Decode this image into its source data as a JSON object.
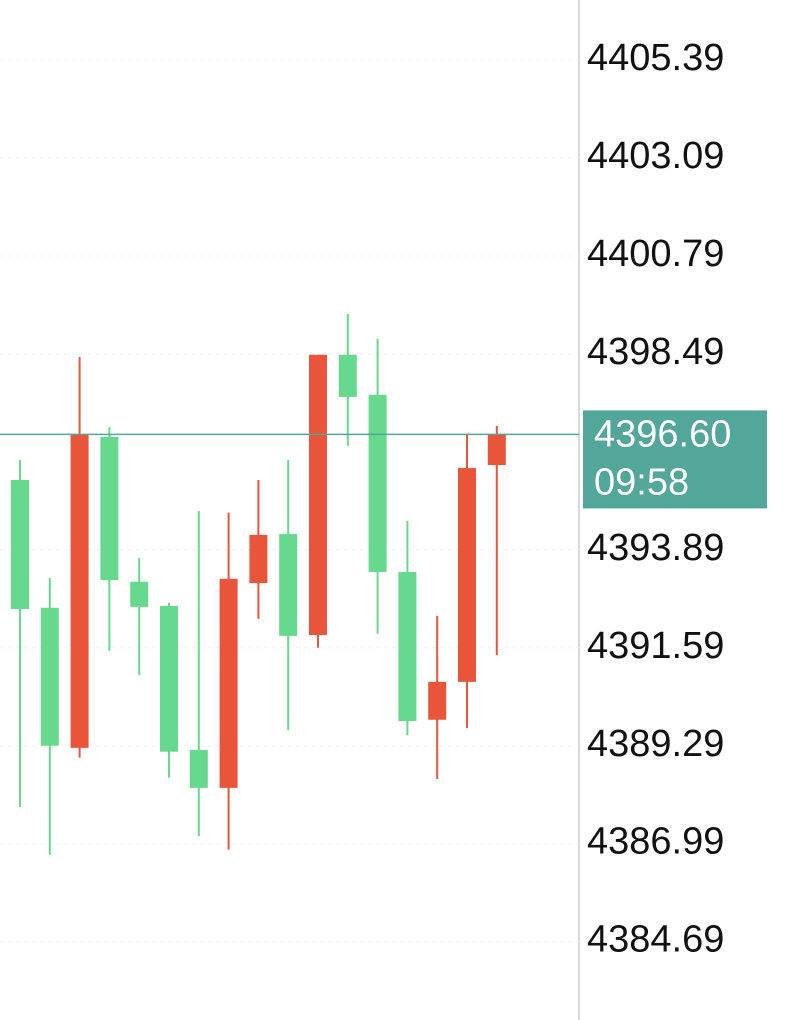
{
  "chart_data": {
    "type": "candlestick",
    "categories": [
      null,
      null,
      null,
      null,
      null,
      null,
      null,
      null,
      null,
      null,
      null,
      null,
      null,
      null,
      null,
      null,
      null
    ],
    "open": [
      4392.5,
      4389.29,
      4396.59,
      4393.18,
      4392.55,
      4389.15,
      4388.3,
      4393.21,
      4394.24,
      4391.87,
      4398.47,
      4397.48,
      4393.37,
      4389.87,
      4390.79,
      4395.81,
      4396.61
    ],
    "high": [
      4396.0,
      4393.23,
      4398.42,
      4396.77,
      4393.7,
      4392.64,
      4394.8,
      4394.76,
      4395.53,
      4396.0,
      4398.47,
      4399.43,
      4398.84,
      4394.57,
      4392.34,
      4396.61,
      4396.8
    ],
    "low": [
      4387.85,
      4386.73,
      4389.01,
      4391.52,
      4390.95,
      4388.54,
      4387.17,
      4386.85,
      4392.27,
      4389.66,
      4391.59,
      4396.33,
      4391.92,
      4389.54,
      4388.51,
      4389.71,
      4391.42
    ],
    "close": [
      4395.53,
      4392.53,
      4389.24,
      4396.54,
      4393.14,
      4392.57,
      4389.19,
      4388.3,
      4393.11,
      4394.26,
      4391.89,
      4398.47,
      4397.53,
      4393.37,
      4389.9,
      4390.79,
      4395.88
    ],
    "up_color": "#66d98e",
    "down_color": "#e8553a",
    "ylim": [
      4382.85,
      4406.8
    ],
    "yticks": [
      4405.39,
      4403.09,
      4400.79,
      4398.49,
      4393.89,
      4391.59,
      4389.29,
      4386.99,
      4384.69
    ],
    "grid": true,
    "last_price": {
      "value": 4396.6,
      "label": "4396.60"
    },
    "countdown": "09:58",
    "last_price_color": "#52a69a"
  }
}
